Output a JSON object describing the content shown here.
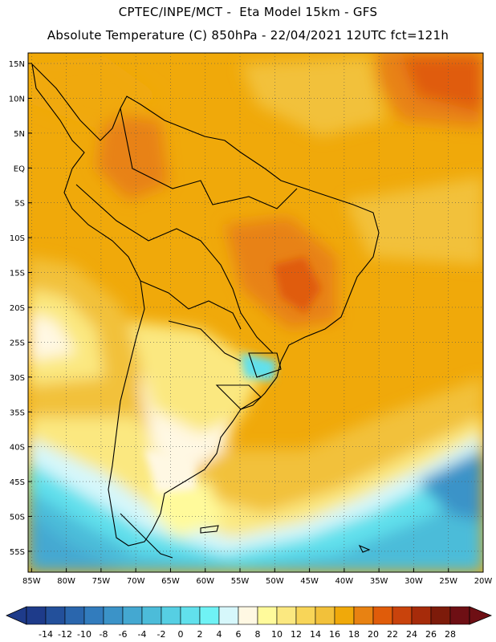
{
  "header": {
    "line1": "CPTEC/INPE/MCT -  Eta Model 15km - GFS",
    "line2": "Absolute Temperature (C) 850hPa - 22/04/2021 12UTC fct=121h"
  },
  "map": {
    "lat_labels": [
      "15N",
      "10N",
      "5N",
      "EQ",
      "5S",
      "10S",
      "15S",
      "20S",
      "25S",
      "30S",
      "35S",
      "40S",
      "45S",
      "50S",
      "55S"
    ],
    "lat_values": [
      15,
      10,
      5,
      0,
      -5,
      -10,
      -15,
      -20,
      -25,
      -30,
      -35,
      -40,
      -45,
      -50,
      -55
    ],
    "lon_labels": [
      "85W",
      "80W",
      "75W",
      "70W",
      "65W",
      "60W",
      "55W",
      "50W",
      "45W",
      "40W",
      "35W",
      "30W",
      "25W",
      "20W"
    ],
    "lon_values": [
      -85,
      -80,
      -75,
      -70,
      -65,
      -60,
      -55,
      -50,
      -45,
      -40,
      -35,
      -30,
      -25,
      -20
    ],
    "extent": {
      "lon_min": -85.5,
      "lon_max": -20,
      "lat_min": -58,
      "lat_max": 16.5
    }
  },
  "colorbar": {
    "labels": [
      "-14",
      "-12",
      "-10",
      "-8",
      "-6",
      "-4",
      "-2",
      "0",
      "2",
      "4",
      "6",
      "8",
      "10",
      "12",
      "14",
      "16",
      "18",
      "20",
      "22",
      "24",
      "26",
      "28"
    ],
    "colors": [
      "#1e3b8a",
      "#23509b",
      "#2a66ad",
      "#327cbd",
      "#3b93c8",
      "#44a8d1",
      "#4cbcd9",
      "#56cfe3",
      "#61e0ec",
      "#6ff2f5",
      "#d6f7fb",
      "#fff8e3",
      "#fffa9b",
      "#fbe880",
      "#f8d558",
      "#f2c13a",
      "#f0a90a",
      "#e88212",
      "#e05c0a",
      "#c9430c",
      "#a62b0a",
      "#7d1b0a",
      "#6e0f14"
    ]
  }
}
